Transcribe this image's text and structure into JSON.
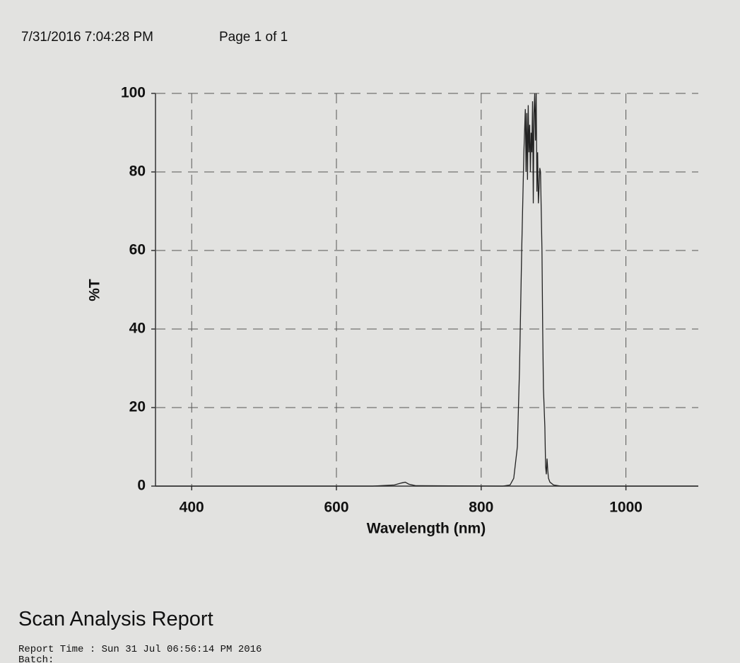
{
  "header": {
    "timestamp": "7/31/2016 7:04:28 PM",
    "page": "Page 1 of 1"
  },
  "chart_data": {
    "type": "line",
    "xlabel": "Wavelength (nm)",
    "ylabel": "%T",
    "x": [
      350,
      650,
      680,
      690,
      695,
      700,
      710,
      830,
      840,
      845,
      850,
      853,
      856,
      859,
      861,
      862,
      863,
      864,
      865,
      866,
      867,
      868,
      869,
      870,
      871,
      872,
      873,
      874,
      875,
      876,
      877,
      878,
      879,
      880,
      881,
      882,
      883,
      884,
      885,
      886,
      887,
      888,
      889,
      890,
      891,
      892,
      893,
      895,
      900,
      910,
      1100
    ],
    "series": [
      {
        "color": "#222222",
        "values": [
          0,
          0,
          0.3,
          0.8,
          1,
          0.5,
          0.1,
          0,
          0.3,
          2,
          10,
          30,
          60,
          85,
          96,
          80,
          95,
          78,
          97,
          85,
          92,
          80,
          90,
          85,
          98,
          72,
          95,
          100,
          88,
          100,
          75,
          85,
          72,
          76,
          81,
          80,
          70,
          60,
          40,
          25,
          20,
          15,
          5,
          3,
          7,
          4,
          2,
          1,
          0.3,
          0,
          0
        ]
      }
    ],
    "xlim": [
      350,
      1100
    ],
    "ylim": [
      0,
      100
    ],
    "xticks": [
      400,
      600,
      800,
      1000
    ],
    "yticks": [
      0,
      20,
      40,
      60,
      80,
      100
    ],
    "grid": true
  },
  "report": {
    "title": "Scan Analysis Report",
    "lines": [
      "Report Time : Sun 31 Jul 06:56:14 PM 2016",
      "Batch:"
    ]
  }
}
